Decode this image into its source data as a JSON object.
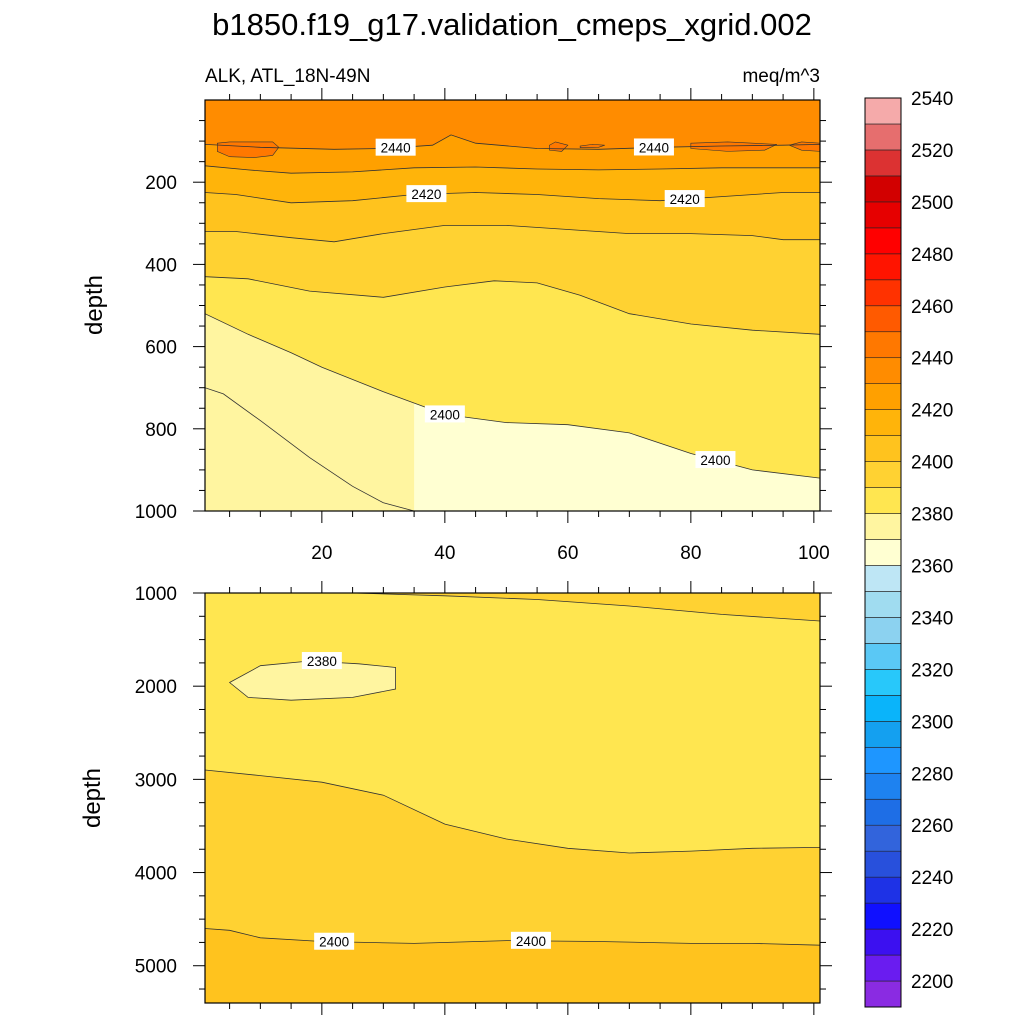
{
  "figure": {
    "title": "b1850.f19_g17.validation_cmeps_xgrid.002",
    "left_string": "ALK, ATL_18N-49N",
    "right_string": "meq/m^3"
  },
  "chart_data": [
    {
      "type": "contour",
      "panel": "upper",
      "variable": "ALK",
      "region": "ATL_18N-49N",
      "units": "meq/m^3",
      "xlim": [
        1,
        101
      ],
      "ylim": [
        1000,
        0
      ],
      "ylabel": "depth",
      "xlabel": "",
      "x_ticks": [
        20,
        40,
        60,
        80,
        100
      ],
      "x_tick_labels": [
        "20",
        "40",
        "60",
        "80",
        "100"
      ],
      "y_ticks": [
        200,
        400,
        600,
        800,
        1000
      ],
      "y_tick_labels": [
        "200",
        "400",
        "600",
        "800",
        "1000"
      ],
      "contour_interval": 10,
      "contour_levels": [
        2390,
        2400,
        2410,
        2420,
        2430,
        2440
      ],
      "contour_labels": [
        "2440",
        "2440",
        "2420",
        "2420",
        "2400",
        "2400"
      ],
      "contour_lines": [
        {
          "level": 2440,
          "points": [
            [
              1,
              108
            ],
            [
              10,
              115
            ],
            [
              22,
              120
            ],
            [
              30,
              118
            ],
            [
              38,
              110
            ],
            [
              41,
              85
            ],
            [
              45,
              105
            ],
            [
              55,
              118
            ],
            [
              65,
              120
            ],
            [
              75,
              115
            ],
            [
              85,
              112
            ],
            [
              95,
              110
            ],
            [
              101,
              108
            ]
          ]
        },
        {
          "level": 2430,
          "points": [
            [
              1,
              160
            ],
            [
              8,
              170
            ],
            [
              15,
              178
            ],
            [
              25,
              175
            ],
            [
              35,
              165
            ],
            [
              45,
              163
            ],
            [
              55,
              168
            ],
            [
              65,
              170
            ],
            [
              75,
              168
            ],
            [
              85,
              165
            ],
            [
              95,
              165
            ],
            [
              101,
              165
            ]
          ]
        },
        {
          "level": 2420,
          "points": [
            [
              1,
              225
            ],
            [
              6,
              230
            ],
            [
              15,
              250
            ],
            [
              25,
              245
            ],
            [
              35,
              230
            ],
            [
              45,
              225
            ],
            [
              55,
              230
            ],
            [
              65,
              240
            ],
            [
              75,
              245
            ],
            [
              85,
              235
            ],
            [
              95,
              225
            ],
            [
              101,
              225
            ]
          ]
        },
        {
          "level": 2410,
          "points": [
            [
              1,
              320
            ],
            [
              6,
              320
            ],
            [
              15,
              335
            ],
            [
              22,
              345
            ],
            [
              30,
              325
            ],
            [
              40,
              305
            ],
            [
              50,
              305
            ],
            [
              60,
              315
            ],
            [
              70,
              325
            ],
            [
              80,
              325
            ],
            [
              90,
              330
            ],
            [
              95,
              340
            ],
            [
              101,
              340
            ]
          ]
        },
        {
          "level": 2400,
          "points": [
            [
              1,
              430
            ],
            [
              8,
              435
            ],
            [
              18,
              465
            ],
            [
              30,
              480
            ],
            [
              40,
              455
            ],
            [
              48,
              440
            ],
            [
              55,
              445
            ],
            [
              62,
              475
            ],
            [
              70,
              520
            ],
            [
              80,
              545
            ],
            [
              90,
              560
            ],
            [
              101,
              570
            ]
          ]
        },
        {
          "level": 2390,
          "points": [
            [
              1,
              520
            ],
            [
              8,
              570
            ],
            [
              15,
              615
            ],
            [
              20,
              650
            ],
            [
              30,
              710
            ],
            [
              40,
              765
            ],
            [
              50,
              785
            ],
            [
              60,
              790
            ],
            [
              70,
              810
            ],
            [
              80,
              860
            ],
            [
              90,
              900
            ],
            [
              101,
              920
            ]
          ]
        },
        {
          "level": 2380,
          "points": [
            [
              1,
              700
            ],
            [
              4,
              715
            ],
            [
              10,
              780
            ],
            [
              18,
              870
            ],
            [
              25,
              940
            ],
            [
              30,
              980
            ],
            [
              35,
              1000
            ]
          ]
        }
      ],
      "shading_levels_present": [
        2380,
        2390,
        2400,
        2410,
        2420,
        2430,
        2440,
        2450,
        2460
      ]
    },
    {
      "type": "contour",
      "panel": "lower",
      "variable": "ALK",
      "region": "ATL_18N-49N",
      "units": "meq/m^3",
      "xlim": [
        1,
        101
      ],
      "ylim": [
        5400,
        1000
      ],
      "ylabel": "depth",
      "xlabel": "",
      "x_ticks": [
        20,
        40,
        60,
        80,
        100
      ],
      "y_ticks": [
        1000,
        2000,
        3000,
        4000,
        5000
      ],
      "y_tick_labels": [
        "1000",
        "2000",
        "3000",
        "4000",
        "5000"
      ],
      "contour_interval": 10,
      "contour_levels": [
        2380,
        2390,
        2400
      ],
      "contour_labels": [
        "2380",
        "2400",
        "2400"
      ],
      "contour_lines": [
        {
          "level": 2390,
          "points": [
            [
              1,
              2900
            ],
            [
              10,
              2960
            ],
            [
              20,
              3030
            ],
            [
              30,
              3170
            ],
            [
              40,
              3480
            ],
            [
              50,
              3640
            ],
            [
              60,
              3740
            ],
            [
              70,
              3790
            ],
            [
              80,
              3770
            ],
            [
              90,
              3740
            ],
            [
              101,
              3730
            ]
          ]
        },
        {
          "level": 2400,
          "points": [
            [
              1,
              4600
            ],
            [
              5,
              4620
            ],
            [
              10,
              4700
            ],
            [
              20,
              4740
            ],
            [
              35,
              4760
            ],
            [
              50,
              4730
            ],
            [
              65,
              4740
            ],
            [
              80,
              4760
            ],
            [
              90,
              4760
            ],
            [
              101,
              4780
            ]
          ]
        },
        {
          "level": 2390,
          "points": [
            [
              25,
              1000
            ],
            [
              40,
              1030
            ],
            [
              55,
              1070
            ],
            [
              70,
              1140
            ],
            [
              85,
              1230
            ],
            [
              101,
              1300
            ]
          ]
        }
      ],
      "closed_contours": [
        {
          "level": 2380,
          "points": [
            [
              5,
              1960
            ],
            [
              10,
              1780
            ],
            [
              18,
              1730
            ],
            [
              26,
              1760
            ],
            [
              32,
              1800
            ],
            [
              32,
              2030
            ],
            [
              25,
              2120
            ],
            [
              15,
              2150
            ],
            [
              8,
              2120
            ]
          ]
        }
      ],
      "shading_levels_present": [
        2380,
        2390,
        2400,
        2410
      ]
    }
  ],
  "colorbar": {
    "orientation": "vertical",
    "colors": [
      "#8a2be2",
      "#6a1cf0",
      "#3c10f0",
      "#1010ff",
      "#1e32e6",
      "#2850dc",
      "#3264dc",
      "#1e6ee6",
      "#1e82f0",
      "#1e96ff",
      "#14a0f0",
      "#0ab4fa",
      "#28c8fa",
      "#5ac8f5",
      "#8cd2f0",
      "#a0dcf0",
      "#bee6f5",
      "#ffffd2",
      "#fff5a0",
      "#ffe650",
      "#ffd232",
      "#ffc31e",
      "#ffb40a",
      "#ffa000",
      "#ff8c00",
      "#ff7800",
      "#ff5a00",
      "#ff3200",
      "#ff1400",
      "#ff0000",
      "#e60000",
      "#d20000",
      "#dc3232",
      "#e66e6e",
      "#f5aaaa"
    ],
    "tick_labels": [
      "2200",
      "2220",
      "2240",
      "2260",
      "2280",
      "2300",
      "2320",
      "2340",
      "2360",
      "2380",
      "2400",
      "2420",
      "2440",
      "2460",
      "2480",
      "2500",
      "2520",
      "2540"
    ]
  },
  "axes_style": {
    "minor_ticks": true,
    "grid": false
  }
}
